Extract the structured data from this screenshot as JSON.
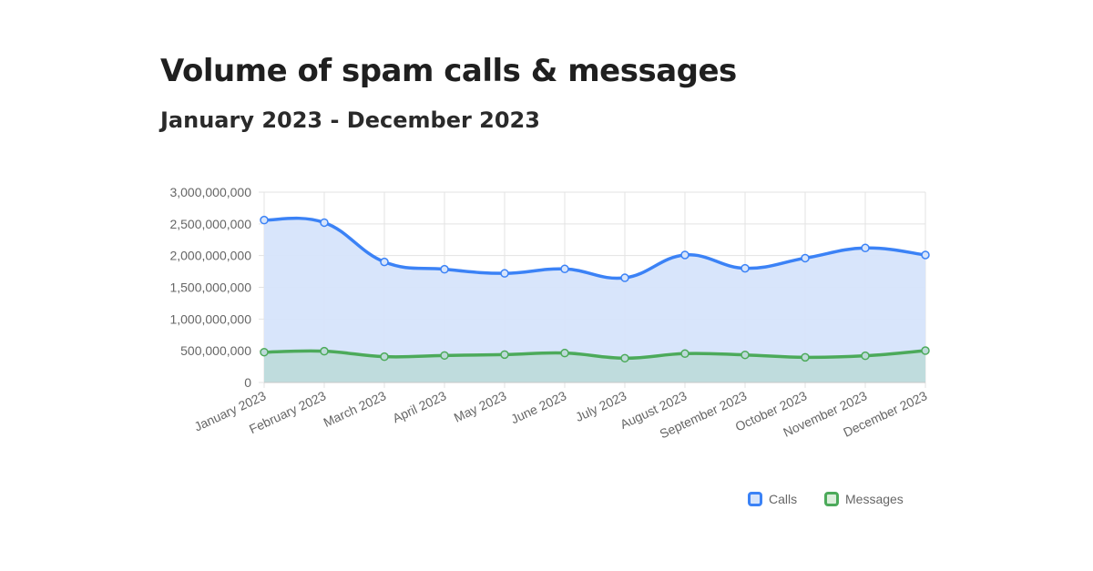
{
  "title": "Volume of spam calls & messages",
  "subtitle": "January 2023 - December 2023",
  "chart_data": {
    "type": "area",
    "categories": [
      "January 2023",
      "February 2023",
      "March 2023",
      "April 2023",
      "May 2023",
      "June 2023",
      "July 2023",
      "August 2023",
      "September 2023",
      "October 2023",
      "November 2023",
      "December 2023"
    ],
    "series": [
      {
        "name": "Calls",
        "color": "#3b82f6",
        "fill": "#d6e4fb",
        "values": [
          2560000000,
          2520000000,
          1900000000,
          1785000000,
          1720000000,
          1790000000,
          1650000000,
          2010000000,
          1800000000,
          1960000000,
          2120000000,
          2010000000
        ]
      },
      {
        "name": "Messages",
        "color": "#4caa5a",
        "fill": "#bcdad9",
        "values": [
          478000000,
          493000000,
          407000000,
          426000000,
          440000000,
          464000000,
          383000000,
          455000000,
          435000000,
          397000000,
          421000000,
          502000000
        ]
      }
    ],
    "ylim": [
      0,
      3000000000
    ],
    "yticks": [
      "0",
      "500,000,000",
      "1,000,000,000",
      "1,500,000,000",
      "2,000,000,000",
      "2,500,000,000",
      "3,000,000,000"
    ],
    "grid": true,
    "legend": "bottom-right"
  }
}
